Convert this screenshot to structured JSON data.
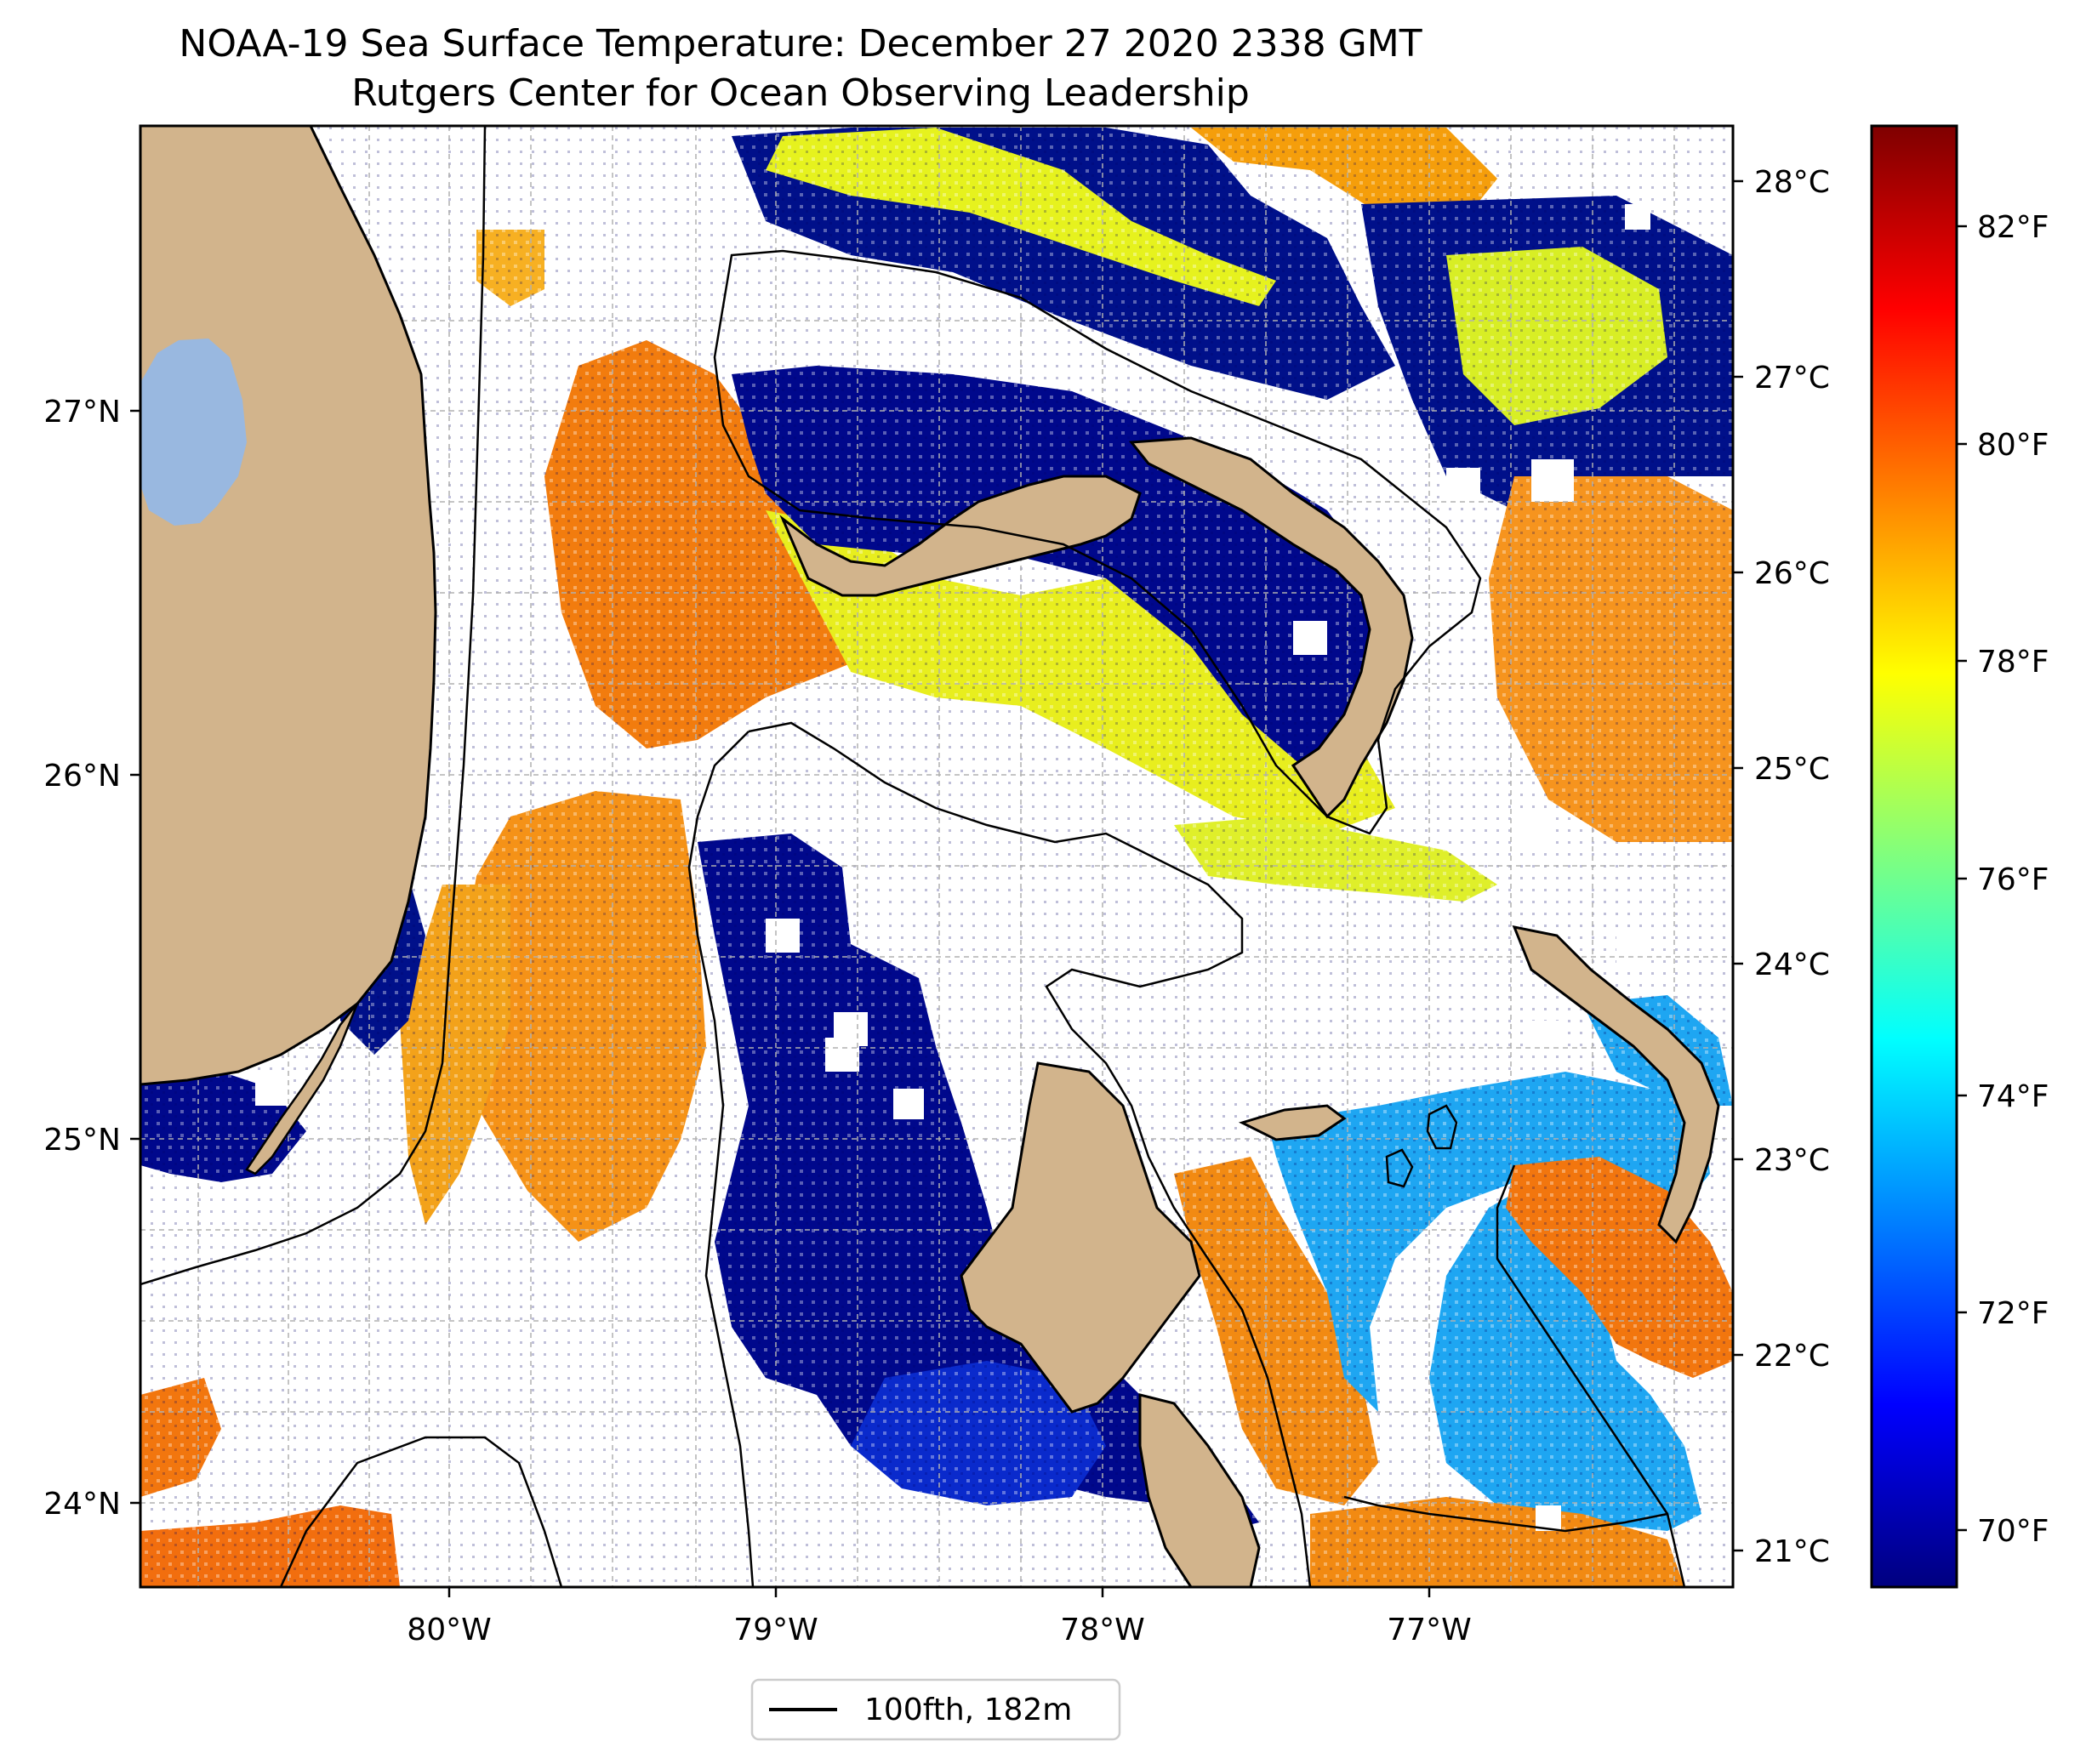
{
  "title": {
    "line1": "NOAA-19 Sea Surface Temperature: December 27 2020 2338 GMT",
    "line2": "Rutgers Center for Ocean Observing Leadership"
  },
  "map": {
    "x_ticks": [
      {
        "value": -80,
        "label": "80°W"
      },
      {
        "value": -79,
        "label": "79°W"
      },
      {
        "value": -78,
        "label": "78°W"
      },
      {
        "value": -77,
        "label": "77°W"
      }
    ],
    "y_ticks": [
      {
        "value": 27,
        "label": "27°N"
      },
      {
        "value": 26,
        "label": "26°N"
      },
      {
        "value": 25,
        "label": "25°N"
      },
      {
        "value": 24,
        "label": "24°N"
      }
    ],
    "grid": true,
    "legend": {
      "label": "100fth, 182m",
      "position": "bottom-center"
    },
    "colors": {
      "land": "#D2B48C",
      "lake": "#99B8E0",
      "isobath": "#000000",
      "no_data": "#FFFFFF"
    }
  },
  "colorbar": {
    "colormap": "jet",
    "celsius_ticks": [
      {
        "value": 28,
        "label": "28°C"
      },
      {
        "value": 27,
        "label": "27°C"
      },
      {
        "value": 26,
        "label": "26°C"
      },
      {
        "value": 25,
        "label": "25°C"
      },
      {
        "value": 24,
        "label": "24°C"
      },
      {
        "value": 23,
        "label": "23°C"
      },
      {
        "value": 22,
        "label": "22°C"
      },
      {
        "value": 21,
        "label": "21°C"
      }
    ],
    "fahrenheit_ticks": [
      {
        "value": 82,
        "label": "82°F"
      },
      {
        "value": 80,
        "label": "80°F"
      },
      {
        "value": 78,
        "label": "78°F"
      },
      {
        "value": 76,
        "label": "76°F"
      },
      {
        "value": 74,
        "label": "74°F"
      },
      {
        "value": 72,
        "label": "72°F"
      },
      {
        "value": 70,
        "label": "70°F"
      }
    ]
  }
}
